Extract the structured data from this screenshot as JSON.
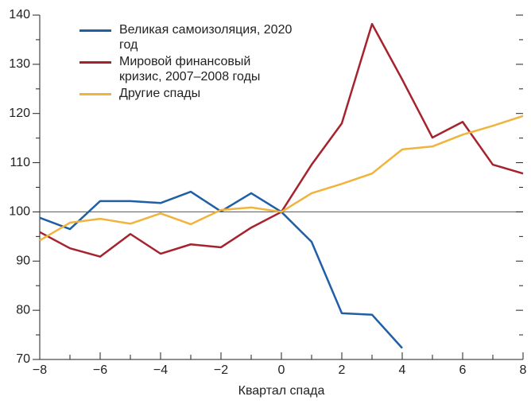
{
  "chart_data": {
    "type": "line",
    "x": [
      -8,
      -7,
      -6,
      -5,
      -4,
      -3,
      -2,
      -1,
      0,
      1,
      2,
      3,
      4,
      5,
      6,
      7,
      8
    ],
    "series": [
      {
        "name": "Великая самоизоляция, 2020 год",
        "color": "#1f5fa6",
        "values": [
          98.8,
          96.5,
          102.2,
          102.2,
          101.8,
          104.1,
          100.1,
          103.8,
          100,
          93.9,
          79.4,
          79.1,
          72.3,
          null,
          null,
          null,
          null
        ]
      },
      {
        "name": "Мировой финансовый кризис, 2007–2008 годы",
        "color": "#a6232e",
        "values": [
          95.9,
          92.6,
          90.9,
          95.5,
          91.5,
          93.4,
          92.8,
          96.8,
          100,
          109.6,
          118,
          138.2,
          126.9,
          115.1,
          118.3,
          109.6,
          107.8
        ]
      },
      {
        "name": "Другие спады",
        "color": "#f0b43c",
        "values": [
          94.2,
          97.8,
          98.6,
          97.6,
          99.7,
          97.5,
          100.4,
          100.9,
          100,
          103.8,
          105.7,
          107.8,
          112.7,
          113.3,
          115.7,
          117.5,
          119.5
        ]
      }
    ],
    "x_label": "Квартал спада",
    "xlim": [
      -8,
      8
    ],
    "xticks": [
      {
        "value": -8,
        "label": "−8"
      },
      {
        "value": -6,
        "label": "−6"
      },
      {
        "value": -4,
        "label": "−4"
      },
      {
        "value": -2,
        "label": "−2"
      },
      0,
      2,
      4,
      6,
      8
    ],
    "xminor_ticks": [
      -7,
      -5,
      -3,
      -1,
      1,
      3,
      5,
      7
    ],
    "ylim": [
      70,
      140
    ],
    "yticks": [
      70,
      80,
      90,
      100,
      110,
      120,
      130,
      140
    ],
    "yminor_ticks": [
      75,
      85,
      95,
      105,
      115,
      125,
      135
    ],
    "reference_line": 100,
    "legend": "upper left"
  }
}
